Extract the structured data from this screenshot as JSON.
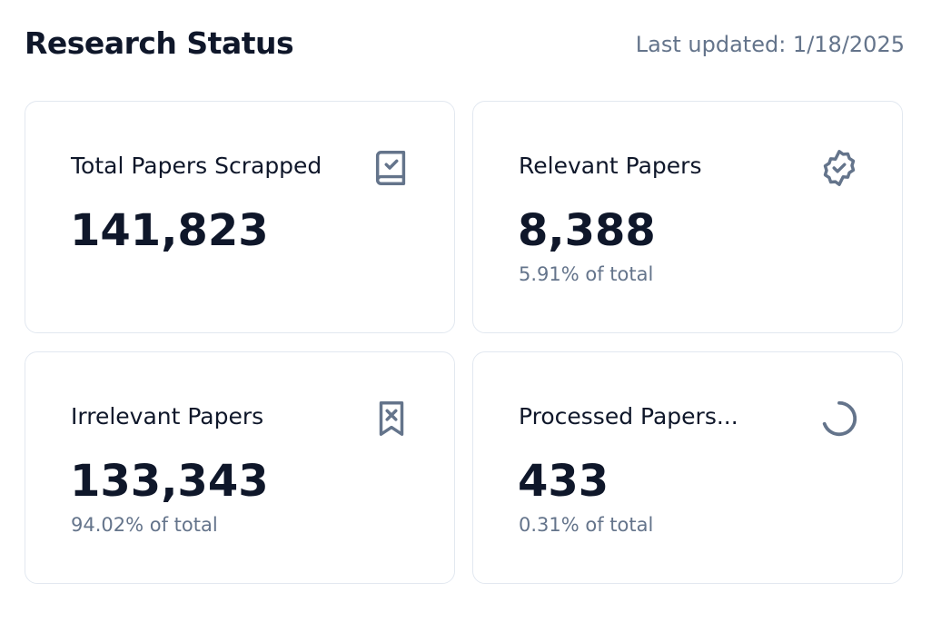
{
  "header": {
    "title": "Research Status",
    "updated": "Last updated: 1/18/2025"
  },
  "cards": [
    {
      "label": "Total Papers Scrapped",
      "value": "141,823"
    },
    {
      "label": "Relevant Papers",
      "value": "8,388",
      "note": "5.91% of total"
    },
    {
      "label": "Irrelevant Papers",
      "value": "133,343",
      "note": "94.02% of total"
    },
    {
      "label": "Processed Papers...",
      "value": "433",
      "note": "0.31% of total"
    }
  ]
}
